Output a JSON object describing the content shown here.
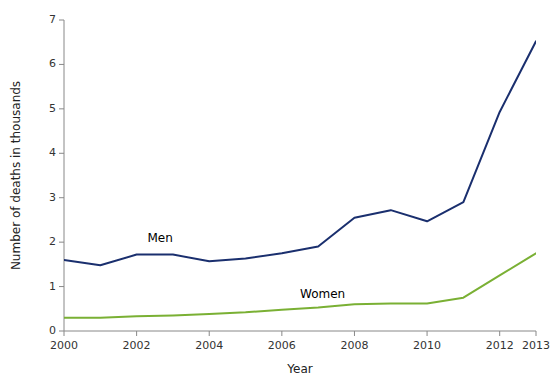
{
  "chart_data": {
    "type": "line",
    "x": [
      2000,
      2001,
      2002,
      2003,
      2004,
      2005,
      2006,
      2007,
      2008,
      2009,
      2010,
      2011,
      2012,
      2013
    ],
    "series": [
      {
        "color": "#1a2f6e",
        "values": [
          1.6,
          1.48,
          1.72,
          1.72,
          1.57,
          1.63,
          1.75,
          1.9,
          2.55,
          2.72,
          2.47,
          2.9,
          4.93,
          6.52
        ]
      },
      {
        "color": "#7ab034",
        "values": [
          0.3,
          0.3,
          0.33,
          0.35,
          0.38,
          0.42,
          0.48,
          0.53,
          0.6,
          0.62,
          0.62,
          0.75,
          1.25,
          1.75
        ]
      }
    ],
    "annotations": [
      {
        "text": "Men",
        "x": 2002.3,
        "y": 1.95
      },
      {
        "text": "Women",
        "x": 2006.5,
        "y": 0.7
      }
    ],
    "x_label": "Year",
    "y_label": "Number of deaths in thousands",
    "xlim": [
      2000,
      2013
    ],
    "xticks": [
      2000,
      2002,
      2004,
      2006,
      2008,
      2010,
      2012,
      2013
    ],
    "ylim": [
      0,
      7
    ],
    "yticks": [
      0,
      1,
      2,
      3,
      4,
      5,
      6,
      7
    ],
    "grid": false
  }
}
